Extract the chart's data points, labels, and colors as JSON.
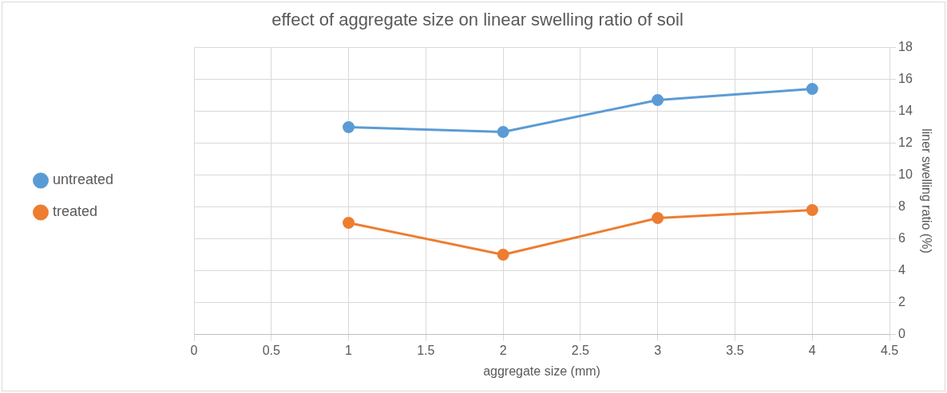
{
  "chart_data": {
    "type": "line",
    "title": "effect of aggregate size on linear swelling ratio of soil",
    "xlabel": "aggregate size (mm)",
    "y2label": "liner swelling ratio (%)",
    "x": [
      1,
      2,
      3,
      4
    ],
    "series": [
      {
        "name": "untreated",
        "color": "#5b9bd5",
        "values": [
          13,
          12.7,
          14.7,
          15.4
        ],
        "axis": "y2"
      },
      {
        "name": "treated",
        "color": "#ed7d31",
        "values": [
          7,
          5,
          7.3,
          7.8
        ],
        "axis": "y2"
      }
    ],
    "xlim": [
      0,
      4.5
    ],
    "xticks": [
      0,
      0.5,
      1,
      1.5,
      2,
      2.5,
      3,
      3.5,
      4,
      4.5
    ],
    "y2lim": [
      0,
      18
    ],
    "y2ticks": [
      0,
      2,
      4,
      6,
      8,
      10,
      12,
      14,
      16,
      18
    ],
    "grid": true,
    "legend": "left",
    "marker": "circle",
    "line_style": "solid"
  }
}
